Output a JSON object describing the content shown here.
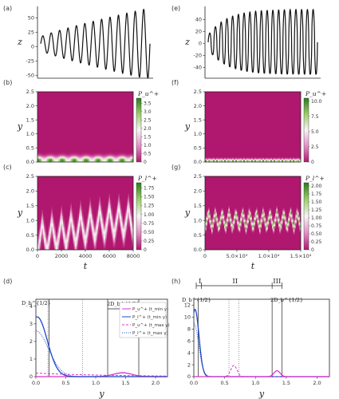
{
  "panel_labels": [
    "(a)",
    "(b)",
    "(c)",
    "(d)",
    "(e)",
    "(f)",
    "(g)",
    "(h)"
  ],
  "colors": {
    "map_low": "#b0176e",
    "map_mid": "#f7f4f6",
    "map_high": "#2b7a1d",
    "magenta": "#d534c8",
    "blue": "#1f48c9",
    "line": "#111111"
  },
  "chart_data": [
    {
      "id": "a",
      "type": "line",
      "ylabel": "z",
      "x_range": [
        0,
        8000
      ],
      "ylim": [
        -55,
        70
      ],
      "yticks": [
        "-50",
        "-25",
        "0",
        "25",
        "50"
      ],
      "series": [
        {
          "shape": "growing oscillation",
          "start_amplitude": 12,
          "end_amplitude": 60,
          "cycles": 13
        }
      ]
    },
    {
      "id": "b",
      "type": "heatmap",
      "ylabel": "y",
      "colorbar_title": "P_u^+",
      "ylim": [
        0,
        2.5
      ],
      "yticks": [
        "0.0",
        "0.5",
        "1.0",
        "1.5",
        "2.0",
        "2.5"
      ],
      "colorbar_range": [
        0,
        3.8
      ],
      "colorbar_ticks": [
        "0",
        "0.5",
        "1.0",
        "1.5",
        "2.0",
        "2.5",
        "3.0",
        "3.5"
      ],
      "feature": {
        "band_center_y": 0.05,
        "band_width_y": 0.25,
        "peak_value": 3.8
      }
    },
    {
      "id": "c",
      "type": "heatmap",
      "xlabel": "t",
      "ylabel": "y",
      "colorbar_title": "P_l^+",
      "xlim": [
        0,
        8000
      ],
      "xticks": [
        "0",
        "2000",
        "4000",
        "6000",
        "8000"
      ],
      "ylim": [
        0,
        2.5
      ],
      "yticks": [
        "0.0",
        "0.5",
        "1.0",
        "1.5",
        "2.0",
        "2.5"
      ],
      "colorbar_range": [
        0,
        1.9
      ],
      "colorbar_ticks": [
        "0",
        "0.25",
        "0.50",
        "0.75",
        "1.00",
        "1.25",
        "1.50",
        "1.75"
      ],
      "feature": {
        "pattern": "zigzag",
        "center_y_start": 0.3,
        "center_y_end": 1.0,
        "max_value": 0.6
      }
    },
    {
      "id": "d",
      "type": "line",
      "xlabel": "y",
      "xlim": [
        0,
        2.2
      ],
      "xticks": [
        "0.0",
        "0.5",
        "1.0",
        "1.5",
        "2.0"
      ],
      "ylim": [
        0,
        4.4
      ],
      "yticks": [
        "0",
        "1",
        "2",
        "3",
        "4"
      ],
      "annotations": [
        "D_b^{1/2}",
        "2D_b^{1/2}"
      ],
      "series": [
        {
          "name": "P_u^+ (t_min y)",
          "style": "solid",
          "color": "magenta",
          "peak_x": 1.45,
          "peak_y": 0.22
        },
        {
          "name": "P_l^+ (t_min y)",
          "style": "solid",
          "color": "blue",
          "peak_x": 0.02,
          "peak_y": 3.4
        },
        {
          "name": "P_u^+ (t_max y)",
          "style": "dashed",
          "color": "magenta",
          "peak_x": 0.0,
          "peak_y": 0.2
        },
        {
          "name": "P_l^+ (t_max y)",
          "style": "dotted",
          "color": "blue",
          "peak_x": 0.0,
          "peak_y": 2.6
        }
      ],
      "vlines_solid": [
        0.22,
        1.2,
        1.72
      ],
      "vlines_dotted": [
        0.2,
        0.78
      ]
    },
    {
      "id": "e",
      "type": "line",
      "ylabel": "z",
      "x_range": [
        0,
        15000
      ],
      "ylim": [
        -58,
        62
      ],
      "yticks": [
        "-40",
        "-20",
        "0",
        "20",
        "40"
      ],
      "series": [
        {
          "shape": "rapidly saturating oscillation",
          "start_amplitude": 12,
          "end_amplitude": 55,
          "cycles": 19
        }
      ]
    },
    {
      "id": "f",
      "type": "heatmap",
      "ylabel": "y",
      "colorbar_title": "P_u^+",
      "ylim": [
        0,
        2.5
      ],
      "yticks": [
        "0.0",
        "0.5",
        "1.0",
        "1.5",
        "2.0",
        "2.5"
      ],
      "colorbar_range": [
        0,
        10.5
      ],
      "colorbar_ticks": [
        "0",
        "2.5",
        "5.0",
        "7.5",
        "10.0"
      ],
      "feature": {
        "band_center_y": 0.04,
        "band_width_y": 0.12,
        "peak_value": 10.5
      }
    },
    {
      "id": "g",
      "type": "heatmap",
      "xlabel": "t",
      "ylabel": "y",
      "colorbar_title": "P_l^+",
      "xlim": [
        0,
        15000
      ],
      "xticks": [
        "0",
        "5.0×10³",
        "1.0×10⁴",
        "1.5×10⁴"
      ],
      "ylim": [
        0,
        2.5
      ],
      "yticks": [
        "0.0",
        "0.5",
        "1.0",
        "1.5",
        "2.0",
        "2.5"
      ],
      "colorbar_range": [
        0,
        2.1
      ],
      "colorbar_ticks": [
        "0",
        "0.25",
        "0.50",
        "0.75",
        "1.00",
        "1.25",
        "1.50",
        "1.75",
        "2.00"
      ],
      "feature": {
        "pattern": "zigzag",
        "center_y": 1.0,
        "amplitude_y": 0.3,
        "max_value": 1.6
      }
    },
    {
      "id": "h",
      "type": "line",
      "xlabel": "y",
      "xlim": [
        0,
        2.2
      ],
      "xticks": [
        "0.0",
        "0.5",
        "1.0",
        "1.5",
        "2.0"
      ],
      "ylim": [
        0,
        13
      ],
      "yticks": [
        "0",
        "2",
        "4",
        "6",
        "8",
        "10",
        "12"
      ],
      "regions": [
        "I",
        "II",
        "III"
      ],
      "annotations": [
        "D_b^{1/2}",
        "2D_b^{1/2}"
      ],
      "series": [
        {
          "style": "solid",
          "color": "blue",
          "peak_x": 0.02,
          "peak_y": 11.3
        },
        {
          "style": "dotted",
          "color": "blue",
          "peak_x": 0.0,
          "peak_y": 9.0
        },
        {
          "style": "solid",
          "color": "magenta",
          "peak_x": 1.35,
          "peak_y": 1.0
        },
        {
          "style": "dashed",
          "color": "magenta",
          "peak_x": 0.65,
          "peak_y": 1.9
        }
      ],
      "vlines_solid": [
        0.07,
        1.27,
        1.43
      ],
      "vlines_dotted": [
        0.57,
        0.73
      ]
    }
  ]
}
